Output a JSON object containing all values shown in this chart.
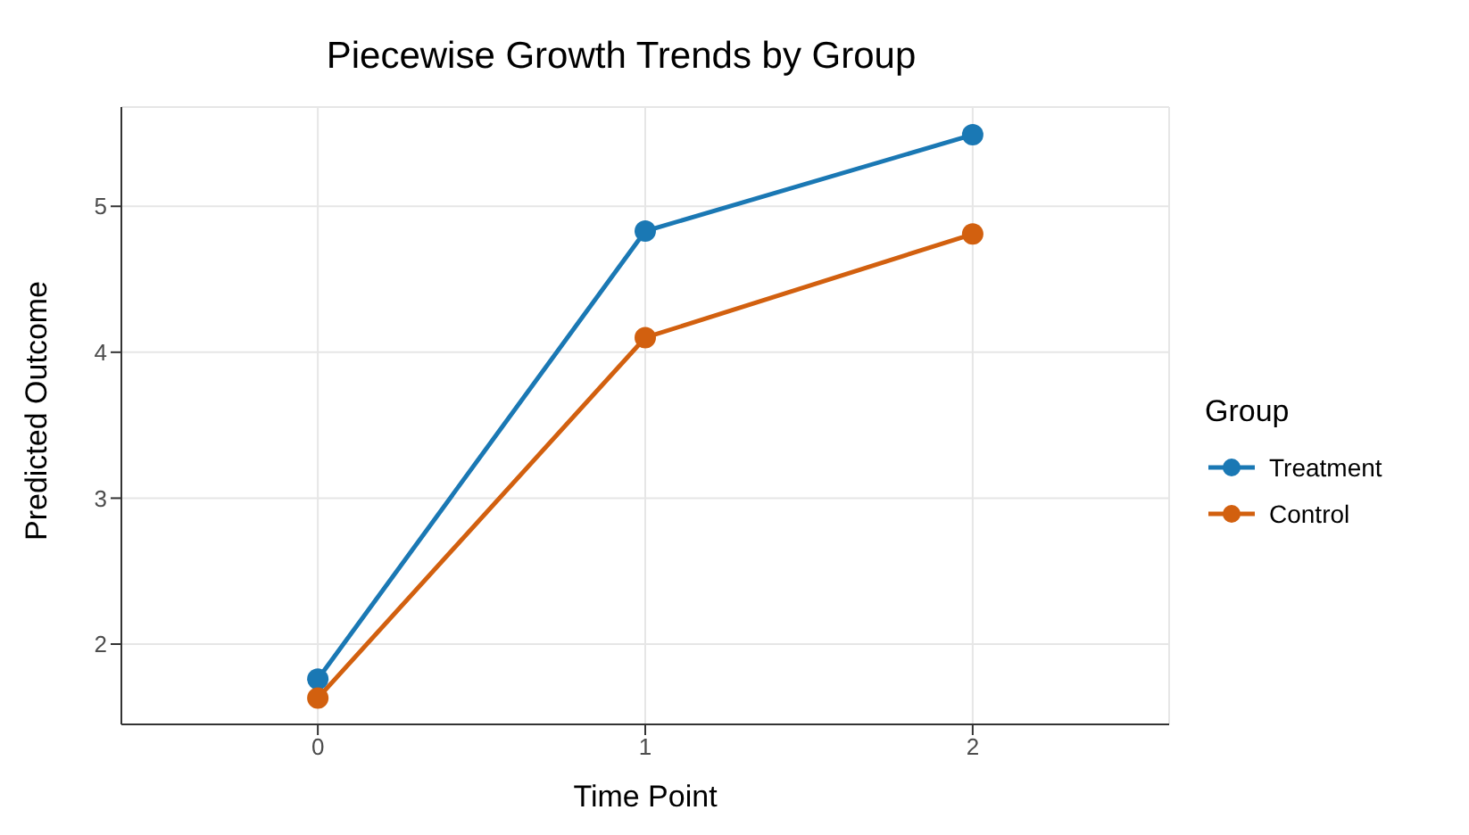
{
  "chart_data": {
    "type": "line",
    "title": "Piecewise Growth Trends by Group",
    "xlabel": "Time Point",
    "ylabel": "Predicted Outcome",
    "legend_title": "Group",
    "x": [
      0,
      1,
      2
    ],
    "series": [
      {
        "name": "Treatment",
        "color": "#1a78b4",
        "values": [
          1.76,
          4.83,
          5.49
        ]
      },
      {
        "name": "Control",
        "color": "#d2600f",
        "values": [
          1.63,
          4.1,
          4.81
        ]
      }
    ],
    "xlim": [
      -0.6,
      2.6
    ],
    "xticks": [
      0,
      1,
      2
    ],
    "ylim": [
      1.45,
      5.68
    ],
    "yticks": [
      2,
      3,
      4,
      5
    ],
    "grid": true,
    "legend": "right",
    "marker": "circle",
    "line_style": "solid"
  }
}
